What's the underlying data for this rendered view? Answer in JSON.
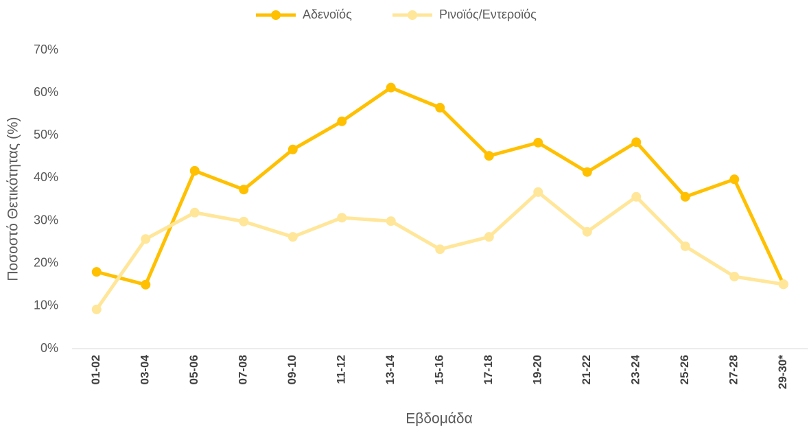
{
  "chart_data": {
    "type": "line",
    "x_label": "Εβδομάδα",
    "y_label": "Ποσοστό Θετικότητας (%)",
    "categories": [
      "01-02",
      "03-04",
      "05-06",
      "07-08",
      "09-10",
      "11-12",
      "13-14",
      "15-16",
      "17-18",
      "19-20",
      "21-22",
      "23-24",
      "25-26",
      "27-28",
      "29-30*"
    ],
    "series": [
      {
        "name": "Αδενοϊός",
        "color": "#FFC000",
        "values": [
          18.0,
          15.0,
          41.7,
          37.3,
          46.7,
          53.3,
          61.2,
          56.5,
          45.2,
          48.3,
          41.4,
          48.4,
          35.6,
          39.7,
          15.1
        ]
      },
      {
        "name": "Ρινοϊός/Εντεροϊός",
        "color": "#FFE699",
        "values": [
          9.2,
          25.7,
          31.9,
          29.8,
          26.2,
          30.7,
          29.9,
          23.3,
          26.2,
          36.7,
          27.4,
          35.6,
          24.0,
          16.9,
          15.1
        ]
      }
    ],
    "ylim": [
      0,
      70
    ],
    "yticks": [
      {
        "value": 0,
        "label": "0%"
      },
      {
        "value": 10,
        "label": "10%"
      },
      {
        "value": 20,
        "label": "20%"
      },
      {
        "value": 30,
        "label": "30%"
      },
      {
        "value": 40,
        "label": "40%"
      },
      {
        "value": 50,
        "label": "50%"
      },
      {
        "value": 60,
        "label": "60%"
      },
      {
        "value": 70,
        "label": "70%"
      }
    ],
    "grid": false,
    "legend": "top"
  }
}
